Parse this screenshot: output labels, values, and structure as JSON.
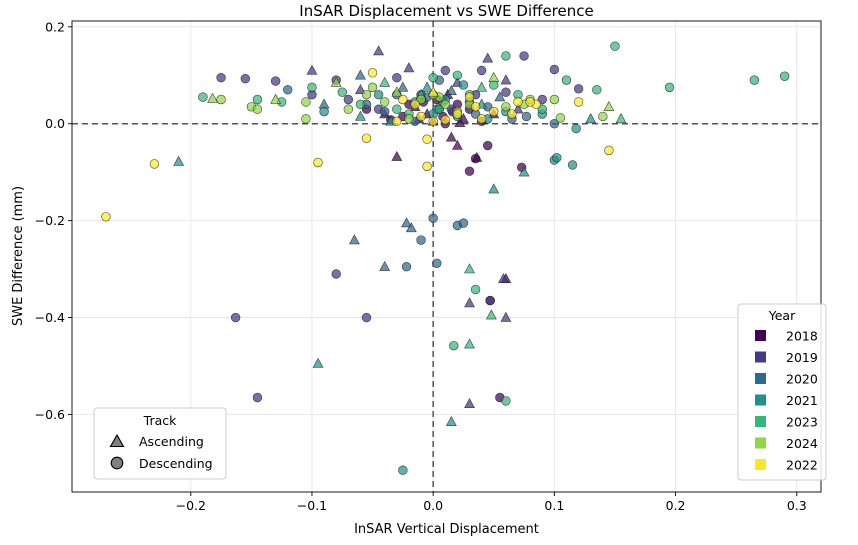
{
  "chart_data": {
    "type": "scatter",
    "title": "InSAR Displacement vs SWE Difference",
    "xlabel": "InSAR Vertical Displacement",
    "ylabel": "SWE Difference (mm)",
    "xlim": [
      -0.298,
      0.32
    ],
    "ylim": [
      -0.76,
      0.212
    ],
    "xticks": [
      -0.2,
      -0.1,
      0.0,
      0.1,
      0.2,
      0.3
    ],
    "xtick_labels": [
      "−0.2",
      "−0.1",
      "0.0",
      "0.1",
      "0.2",
      "0.3"
    ],
    "yticks": [
      -0.6,
      -0.4,
      -0.2,
      0.0,
      0.2
    ],
    "ytick_labels": [
      "−0.6",
      "−0.4",
      "−0.2",
      "0.0",
      "0.2"
    ],
    "grid": true,
    "reference_lines": {
      "x": 0.0,
      "y": 0.0
    },
    "year_legend": {
      "title": "Year",
      "placement": "bottom-right",
      "entries": [
        {
          "label": "2018",
          "color": "#440154"
        },
        {
          "label": "2019",
          "color": "#443983"
        },
        {
          "label": "2020",
          "color": "#31688e"
        },
        {
          "label": "2021",
          "color": "#21918c"
        },
        {
          "label": "2023",
          "color": "#35b779"
        },
        {
          "label": "2024",
          "color": "#90d743"
        },
        {
          "label": "2022",
          "color": "#fde725"
        }
      ]
    },
    "track_legend": {
      "title": "Track",
      "placement": "bottom-left",
      "entries": [
        {
          "label": "Ascending",
          "marker": "triangle"
        },
        {
          "label": "Descending",
          "marker": "circle"
        }
      ]
    },
    "series": [
      {
        "name": "2018",
        "color": "#440154",
        "points": [
          [
            -0.03,
            -0.068,
            "a"
          ],
          [
            -0.005,
            0.02,
            "a"
          ],
          [
            0.0,
            0.005,
            "a"
          ],
          [
            0.005,
            0.03,
            "d"
          ],
          [
            0.01,
            0.0,
            "d"
          ],
          [
            0.015,
            -0.028,
            "a"
          ],
          [
            0.02,
            -0.045,
            "a"
          ],
          [
            0.03,
            -0.098,
            "d"
          ],
          [
            0.035,
            -0.072,
            "d"
          ],
          [
            0.036,
            -0.07,
            "a"
          ],
          [
            0.045,
            -0.045,
            "d"
          ],
          [
            0.073,
            -0.09,
            "d"
          ],
          [
            0.02,
            0.04,
            "d"
          ],
          [
            -0.015,
            0.035,
            "a"
          ],
          [
            0.012,
            0.06,
            "a"
          ],
          [
            -0.025,
            0.015,
            "d"
          ],
          [
            0.025,
            0.01,
            "a"
          ],
          [
            0.008,
            0.015,
            "d"
          ],
          [
            -0.008,
            0.045,
            "d"
          ],
          [
            0.03,
            0.03,
            "d"
          ],
          [
            -0.04,
            0.02,
            "a"
          ],
          [
            0.04,
            0.005,
            "d"
          ],
          [
            -0.012,
            0.01,
            "a"
          ],
          [
            0.016,
            0.025,
            "d"
          ],
          [
            0.003,
            0.05,
            "d"
          ],
          [
            -0.02,
            0.04,
            "d"
          ],
          [
            0.022,
            0.002,
            "a"
          ],
          [
            -0.035,
            0.008,
            "d"
          ],
          [
            0.05,
            0.02,
            "a"
          ],
          [
            -0.055,
            0.03,
            "d"
          ],
          [
            0.047,
            -0.365,
            "d"
          ],
          [
            0.055,
            -0.565,
            "d"
          ],
          [
            0.06,
            -0.32,
            "a"
          ]
        ]
      },
      {
        "name": "2019",
        "color": "#443983",
        "points": [
          [
            -0.175,
            0.095,
            "d"
          ],
          [
            -0.155,
            0.093,
            "d"
          ],
          [
            -0.13,
            0.088,
            "d"
          ],
          [
            -0.1,
            0.11,
            "a"
          ],
          [
            -0.07,
            0.05,
            "d"
          ],
          [
            -0.045,
            0.15,
            "a"
          ],
          [
            -0.02,
            0.115,
            "a"
          ],
          [
            0.01,
            0.11,
            "d"
          ],
          [
            0.04,
            0.11,
            "d"
          ],
          [
            0.045,
            0.135,
            "a"
          ],
          [
            0.075,
            0.14,
            "d"
          ],
          [
            0.1,
            0.112,
            "d"
          ],
          [
            0.12,
            0.072,
            "d"
          ],
          [
            0.06,
            0.09,
            "a"
          ],
          [
            -0.08,
            0.09,
            "d"
          ],
          [
            -0.03,
            0.095,
            "d"
          ],
          [
            0.02,
            0.085,
            "a"
          ],
          [
            0.06,
            0.065,
            "d"
          ],
          [
            -0.08,
            -0.31,
            "d"
          ],
          [
            -0.145,
            -0.565,
            "d"
          ],
          [
            -0.163,
            -0.4,
            "d"
          ],
          [
            -0.055,
            -0.4,
            "d"
          ],
          [
            0.06,
            -0.4,
            "a"
          ],
          [
            0.03,
            -0.578,
            "a"
          ],
          [
            0.03,
            -0.37,
            "a"
          ],
          [
            0.047,
            -0.365,
            "d"
          ],
          [
            0.058,
            -0.32,
            "a"
          ],
          [
            -0.1,
            0.06,
            "d"
          ],
          [
            0.09,
            0.05,
            "d"
          ],
          [
            -0.06,
            0.07,
            "a"
          ],
          [
            -0.01,
            0.06,
            "d"
          ],
          [
            0.035,
            0.06,
            "d"
          ],
          [
            0.015,
            0.03,
            "d"
          ],
          [
            -0.045,
            0.03,
            "d"
          ],
          [
            0.07,
            0.03,
            "a"
          ]
        ]
      },
      {
        "name": "2020",
        "color": "#31688e",
        "points": [
          [
            -0.12,
            0.07,
            "d"
          ],
          [
            -0.09,
            0.04,
            "a"
          ],
          [
            -0.06,
            0.1,
            "a"
          ],
          [
            -0.03,
            0.06,
            "d"
          ],
          [
            0.005,
            0.09,
            "d"
          ],
          [
            0.03,
            0.045,
            "d"
          ],
          [
            0.055,
            0.055,
            "a"
          ],
          [
            0.077,
            0.015,
            "d"
          ],
          [
            0.1,
            0.0,
            "d"
          ],
          [
            -0.065,
            -0.24,
            "a"
          ],
          [
            -0.04,
            -0.295,
            "a"
          ],
          [
            -0.022,
            -0.295,
            "d"
          ],
          [
            -0.022,
            -0.205,
            "a"
          ],
          [
            -0.018,
            -0.215,
            "a"
          ],
          [
            -0.01,
            -0.24,
            "d"
          ],
          [
            0.0,
            -0.195,
            "d"
          ],
          [
            0.003,
            -0.288,
            "d"
          ],
          [
            0.02,
            -0.21,
            "d"
          ],
          [
            0.025,
            -0.205,
            "d"
          ],
          [
            0.003,
            0.03,
            "d"
          ],
          [
            -0.005,
            0.055,
            "d"
          ],
          [
            0.035,
            0.02,
            "d"
          ],
          [
            -0.04,
            0.025,
            "d"
          ],
          [
            0.015,
            0.068,
            "a"
          ],
          [
            -0.015,
            0.005,
            "d"
          ],
          [
            0.045,
            0.035,
            "d"
          ],
          [
            0.065,
            0.01,
            "d"
          ],
          [
            -0.055,
            0.04,
            "d"
          ],
          [
            0.008,
            0.045,
            "d"
          ],
          [
            -0.025,
            0.075,
            "a"
          ]
        ]
      },
      {
        "name": "2021",
        "color": "#21918c",
        "points": [
          [
            -0.21,
            -0.078,
            "a"
          ],
          [
            -0.095,
            -0.495,
            "a"
          ],
          [
            0.015,
            -0.615,
            "a"
          ],
          [
            0.05,
            -0.135,
            "a"
          ],
          [
            0.075,
            -0.1,
            "a"
          ],
          [
            0.1,
            -0.075,
            "d"
          ],
          [
            0.102,
            -0.07,
            "d"
          ],
          [
            0.115,
            -0.085,
            "d"
          ],
          [
            0.118,
            -0.01,
            "d"
          ],
          [
            0.13,
            0.01,
            "a"
          ],
          [
            -0.025,
            -0.715,
            "d"
          ],
          [
            0.0,
            0.02,
            "d"
          ],
          [
            0.02,
            0.015,
            "d"
          ],
          [
            -0.015,
            0.045,
            "d"
          ],
          [
            0.04,
            0.04,
            "a"
          ],
          [
            -0.06,
            0.015,
            "a"
          ],
          [
            0.06,
            0.025,
            "d"
          ],
          [
            0.09,
            0.02,
            "d"
          ],
          [
            -0.09,
            0.025,
            "d"
          ],
          [
            0.01,
            0.05,
            "d"
          ],
          [
            -0.035,
            0.005,
            "a"
          ],
          [
            0.025,
            0.08,
            "d"
          ],
          [
            -0.005,
            0.075,
            "a"
          ],
          [
            0.045,
            0.01,
            "d"
          ],
          [
            -0.045,
            0.06,
            "d"
          ]
        ]
      },
      {
        "name": "2023",
        "color": "#35b779",
        "points": [
          [
            -0.19,
            0.055,
            "d"
          ],
          [
            -0.145,
            0.05,
            "d"
          ],
          [
            -0.125,
            0.045,
            "d"
          ],
          [
            -0.1,
            0.075,
            "d"
          ],
          [
            -0.075,
            0.065,
            "d"
          ],
          [
            -0.04,
            0.085,
            "a"
          ],
          [
            0.0,
            0.095,
            "d"
          ],
          [
            0.03,
            0.06,
            "d"
          ],
          [
            0.06,
            0.14,
            "d"
          ],
          [
            0.09,
            0.03,
            "d"
          ],
          [
            0.11,
            0.09,
            "d"
          ],
          [
            0.135,
            0.07,
            "d"
          ],
          [
            0.15,
            0.16,
            "d"
          ],
          [
            0.155,
            0.01,
            "a"
          ],
          [
            0.195,
            0.075,
            "d"
          ],
          [
            0.265,
            0.09,
            "d"
          ],
          [
            0.29,
            0.098,
            "d"
          ],
          [
            0.035,
            -0.342,
            "d"
          ],
          [
            0.048,
            -0.395,
            "a"
          ],
          [
            0.03,
            -0.3,
            "a"
          ],
          [
            0.03,
            -0.455,
            "a"
          ],
          [
            0.017,
            -0.458,
            "d"
          ],
          [
            0.06,
            -0.572,
            "d"
          ],
          [
            0.005,
            0.03,
            "d"
          ],
          [
            -0.02,
            0.02,
            "d"
          ],
          [
            0.04,
            0.075,
            "a"
          ],
          [
            -0.06,
            0.04,
            "d"
          ],
          [
            0.07,
            0.06,
            "d"
          ],
          [
            -0.01,
            0.06,
            "a"
          ],
          [
            0.02,
            0.1,
            "d"
          ],
          [
            0.05,
            0.08,
            "d"
          ],
          [
            -0.03,
            0.03,
            "d"
          ]
        ]
      },
      {
        "name": "2024",
        "color": "#90d743",
        "points": [
          [
            -0.175,
            0.05,
            "d"
          ],
          [
            -0.182,
            0.052,
            "a"
          ],
          [
            -0.15,
            0.035,
            "d"
          ],
          [
            -0.145,
            0.03,
            "d"
          ],
          [
            -0.13,
            0.05,
            "a"
          ],
          [
            -0.105,
            0.045,
            "d"
          ],
          [
            -0.105,
            0.01,
            "d"
          ],
          [
            -0.08,
            0.085,
            "a"
          ],
          [
            -0.07,
            0.03,
            "d"
          ],
          [
            -0.05,
            0.075,
            "d"
          ],
          [
            -0.03,
            0.065,
            "a"
          ],
          [
            -0.01,
            0.05,
            "d"
          ],
          [
            0.005,
            0.055,
            "d"
          ],
          [
            0.01,
            0.04,
            "d"
          ],
          [
            0.03,
            0.04,
            "d"
          ],
          [
            0.05,
            0.095,
            "a"
          ],
          [
            0.08,
            0.05,
            "d"
          ],
          [
            0.1,
            0.05,
            "d"
          ],
          [
            0.105,
            0.012,
            "d"
          ],
          [
            0.14,
            0.015,
            "d"
          ],
          [
            0.145,
            0.035,
            "a"
          ],
          [
            -0.02,
            0.01,
            "d"
          ],
          [
            0.02,
            0.025,
            "d"
          ],
          [
            -0.04,
            0.045,
            "d"
          ],
          [
            0.06,
            0.035,
            "d"
          ],
          [
            -0.055,
            0.06,
            "d"
          ],
          [
            0.075,
            0.04,
            "d"
          ],
          [
            0.0,
            0.06,
            "d"
          ]
        ]
      },
      {
        "name": "2022",
        "color": "#fde725",
        "points": [
          [
            -0.27,
            -0.192,
            "d"
          ],
          [
            -0.23,
            -0.083,
            "d"
          ],
          [
            -0.095,
            -0.08,
            "d"
          ],
          [
            -0.055,
            -0.03,
            "d"
          ],
          [
            -0.05,
            0.105,
            "d"
          ],
          [
            -0.03,
            0.005,
            "d"
          ],
          [
            -0.01,
            0.015,
            "d"
          ],
          [
            -0.005,
            -0.032,
            "d"
          ],
          [
            0.0,
            0.005,
            "d"
          ],
          [
            -0.005,
            -0.088,
            "d"
          ],
          [
            0.0,
            0.065,
            "a"
          ],
          [
            0.02,
            0.02,
            "d"
          ],
          [
            0.035,
            0.035,
            "d"
          ],
          [
            0.05,
            0.025,
            "d"
          ],
          [
            0.065,
            0.02,
            "d"
          ],
          [
            0.07,
            0.045,
            "d"
          ],
          [
            0.085,
            0.04,
            "d"
          ],
          [
            0.12,
            0.045,
            "d"
          ],
          [
            0.145,
            -0.055,
            "d"
          ],
          [
            -0.015,
            0.04,
            "d"
          ],
          [
            0.01,
            0.008,
            "d"
          ],
          [
            0.03,
            0.055,
            "d"
          ],
          [
            -0.025,
            0.05,
            "d"
          ],
          [
            0.08,
            0.045,
            "d"
          ],
          [
            0.04,
            0.01,
            "d"
          ]
        ]
      }
    ]
  }
}
